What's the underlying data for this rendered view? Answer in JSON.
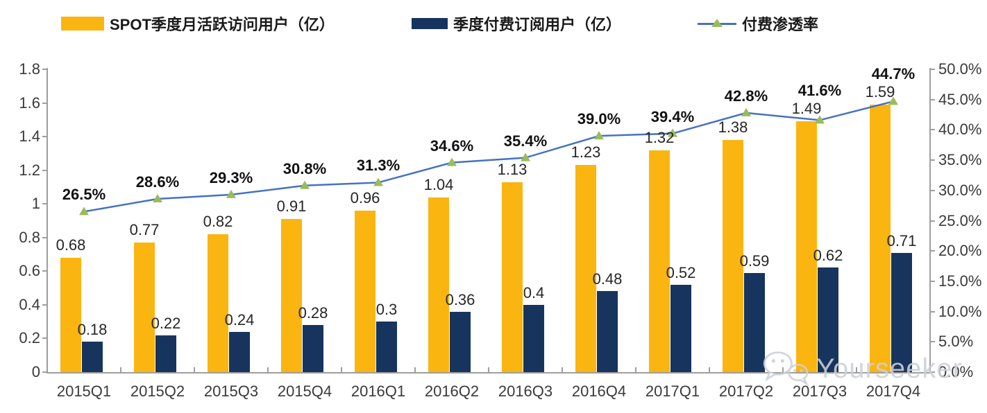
{
  "legend": {
    "items": [
      {
        "label": "SPOT季度月活跃访问用户（亿）",
        "type": "bar"
      },
      {
        "label": "季度付费订阅用户（亿）",
        "type": "bar"
      },
      {
        "label": "付费渗透率",
        "type": "line"
      }
    ]
  },
  "colors": {
    "mau_bar": "#FAB511",
    "subs_bar": "#17345F",
    "line": "#4472C4",
    "marker": "#9BBB59",
    "axis": "#9e9e9e"
  },
  "chart_data": {
    "type": "bar",
    "note": "grouped bars with secondary-axis line",
    "categories": [
      "2015Q1",
      "2015Q2",
      "2015Q3",
      "2015Q4",
      "2016Q1",
      "2016Q2",
      "2016Q3",
      "2016Q4",
      "2017Q1",
      "2017Q2",
      "2017Q3",
      "2017Q4"
    ],
    "series": [
      {
        "name": "SPOT季度月活跃访问用户（亿）",
        "type": "bar",
        "axis": "left",
        "values": [
          0.68,
          0.77,
          0.82,
          0.91,
          0.96,
          1.04,
          1.13,
          1.23,
          1.32,
          1.38,
          1.49,
          1.59
        ],
        "labels": [
          "0.68",
          "0.77",
          "0.82",
          "0.91",
          "0.96",
          "1.04",
          "1.13",
          "1.23",
          "1.32",
          "1.38",
          "1.49",
          "1.59"
        ]
      },
      {
        "name": "季度付费订阅用户（亿）",
        "type": "bar",
        "axis": "left",
        "values": [
          0.18,
          0.22,
          0.24,
          0.28,
          0.3,
          0.36,
          0.4,
          0.48,
          0.52,
          0.59,
          0.62,
          0.71
        ],
        "labels": [
          "0.18",
          "0.22",
          "0.24",
          "0.28",
          "0.3",
          "0.36",
          "0.4",
          "0.48",
          "0.52",
          "0.59",
          "0.62",
          "0.71"
        ]
      },
      {
        "name": "付费渗透率",
        "type": "line",
        "axis": "right",
        "values": [
          26.5,
          28.6,
          29.3,
          30.8,
          31.3,
          34.6,
          35.4,
          39.0,
          39.4,
          42.8,
          41.6,
          44.7
        ],
        "labels": [
          "26.5%",
          "28.6%",
          "29.3%",
          "30.8%",
          "31.3%",
          "34.6%",
          "35.4%",
          "39.0%",
          "39.4%",
          "42.8%",
          "41.6%",
          "44.7%"
        ]
      }
    ],
    "left_axis": {
      "min": 0,
      "max": 1.8,
      "step": 0.2,
      "ticks": [
        "0",
        "0.2",
        "0.4",
        "0.6",
        "0.8",
        "1",
        "1.2",
        "1.4",
        "1.6",
        "1.8"
      ]
    },
    "right_axis": {
      "min": 0,
      "max": 50,
      "step": 5,
      "ticks": [
        "0.0%",
        "5.0%",
        "10.0%",
        "15.0%",
        "20.0%",
        "25.0%",
        "30.0%",
        "35.0%",
        "40.0%",
        "45.0%",
        "50.0%"
      ]
    },
    "grid": false,
    "legend_position": "top"
  },
  "watermark": {
    "text": "Yourseeker",
    "icon": "wechat-icon"
  }
}
